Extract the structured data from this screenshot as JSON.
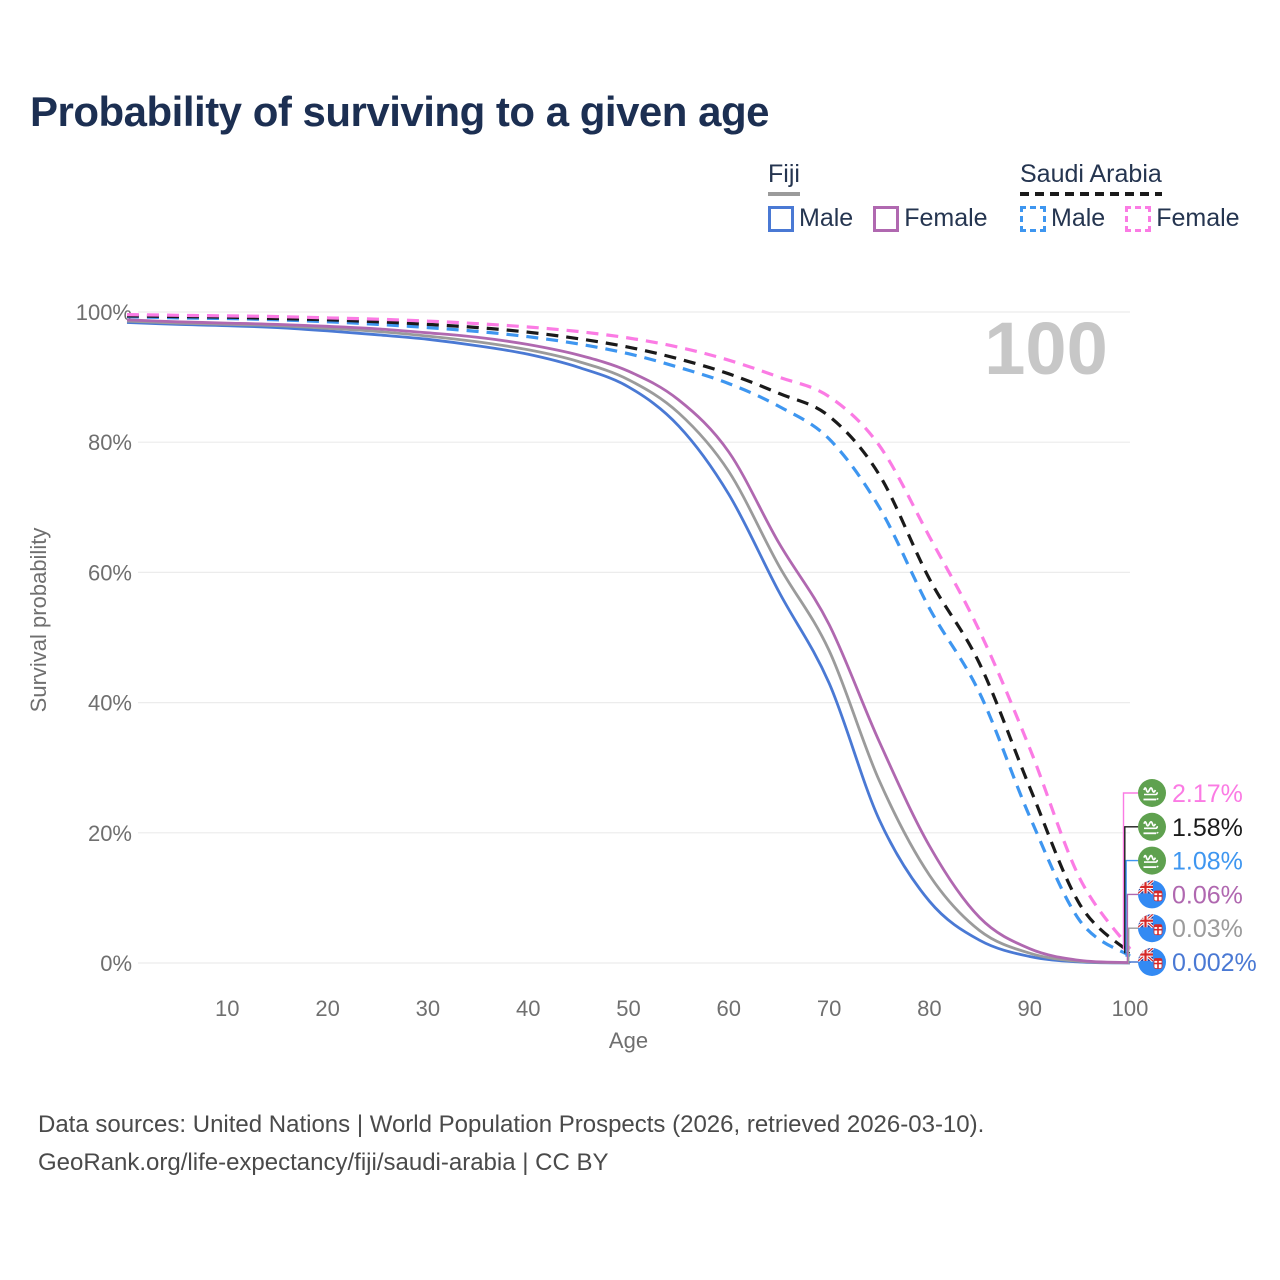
{
  "page": {
    "title": "Probability of surviving to a given age",
    "footer_line1": "Data sources: United Nations | World Population Prospects (2026, retrieved 2026-03-10).",
    "footer_line2": "GeoRank.org/life-expectancy/fiji/saudi-arabia | CC BY"
  },
  "legend": {
    "groups": [
      {
        "country": "Fiji",
        "underline_style": "solid",
        "underline_color": "#9b9b9b",
        "items": [
          {
            "label": "Male",
            "color": "#4a79d4",
            "dashed": false
          },
          {
            "label": "Female",
            "color": "#b068b0",
            "dashed": false
          }
        ]
      },
      {
        "country": "Saudi Arabia",
        "underline_style": "dashed",
        "underline_color": "#1a1a1a",
        "items": [
          {
            "label": "Male",
            "color": "#3e96f0",
            "dashed": true
          },
          {
            "label": "Female",
            "color": "#fb7be4",
            "dashed": true
          }
        ]
      }
    ]
  },
  "chart_data": {
    "type": "line",
    "title": "Probability of surviving to a given age",
    "xlabel": "Age",
    "ylabel": "Survival probability",
    "xlim": [
      0,
      100
    ],
    "ylim": [
      0,
      100
    ],
    "x_ticks": [
      10,
      20,
      30,
      40,
      50,
      60,
      70,
      80,
      90,
      100
    ],
    "y_ticks": [
      0,
      20,
      40,
      60,
      80,
      100
    ],
    "y_tick_suffix": "%",
    "grid": true,
    "legend_position": "top-right",
    "hover_age_label": "100",
    "ages": [
      0,
      5,
      10,
      15,
      20,
      25,
      30,
      35,
      40,
      45,
      50,
      55,
      60,
      65,
      70,
      75,
      80,
      85,
      90,
      95,
      100
    ],
    "series": [
      {
        "id": "fiji_male",
        "name": "Fiji Male",
        "country": "fiji",
        "style": "solid",
        "color": "#4a79d4",
        "values": [
          98.4,
          98.1,
          97.9,
          97.6,
          97.1,
          96.5,
          95.8,
          94.8,
          93.5,
          91.5,
          88.5,
          82.5,
          72,
          57,
          43,
          22,
          9.5,
          3.5,
          1.0,
          0.15,
          0.002
        ]
      },
      {
        "id": "fiji_all",
        "name": "Fiji",
        "country": "fiji",
        "style": "solid",
        "color": "#9b9b9b",
        "values": [
          98.6,
          98.3,
          98.1,
          97.9,
          97.5,
          97.0,
          96.3,
          95.4,
          94.2,
          92.4,
          89.6,
          84.5,
          75.5,
          61,
          48,
          28,
          13.5,
          5.0,
          1.5,
          0.25,
          0.03
        ]
      },
      {
        "id": "fiji_female",
        "name": "Fiji Female",
        "country": "fiji",
        "style": "solid",
        "color": "#b068b0",
        "values": [
          98.8,
          98.5,
          98.3,
          98.1,
          97.8,
          97.4,
          96.8,
          96.1,
          95.0,
          93.4,
          90.9,
          86.5,
          78.5,
          64.5,
          52,
          34,
          18,
          7.0,
          2.2,
          0.4,
          0.06
        ]
      },
      {
        "id": "saudi_male",
        "name": "Saudi Arabia Male",
        "country": "saudi_arabia",
        "style": "dashed",
        "color": "#3e96f0",
        "values": [
          99.3,
          99.1,
          99.0,
          98.8,
          98.5,
          98.1,
          97.6,
          97.0,
          96.2,
          95.1,
          93.6,
          91.5,
          89.0,
          85.5,
          80.5,
          70,
          54.5,
          41.5,
          22.5,
          6.5,
          1.08
        ]
      },
      {
        "id": "saudi_all",
        "name": "Saudi Arabia",
        "country": "saudi_arabia",
        "style": "dashed",
        "color": "#1a1a1a",
        "values": [
          99.4,
          99.3,
          99.2,
          99.0,
          98.8,
          98.5,
          98.1,
          97.6,
          96.9,
          95.9,
          94.6,
          92.8,
          90.5,
          87.5,
          84,
          75,
          59,
          46,
          27,
          9,
          1.58
        ]
      },
      {
        "id": "saudi_female",
        "name": "Saudi Arabia Female",
        "country": "saudi_arabia",
        "style": "dashed",
        "color": "#fb7be4",
        "values": [
          99.6,
          99.5,
          99.4,
          99.3,
          99.1,
          98.9,
          98.6,
          98.2,
          97.7,
          97.0,
          96.0,
          94.6,
          92.6,
          90.0,
          87,
          79.5,
          65.5,
          51,
          33,
          13,
          2.17
        ]
      }
    ],
    "end_labels": [
      {
        "series": "saudi_female",
        "value": "2.17%"
      },
      {
        "series": "saudi_all",
        "value": "1.58%"
      },
      {
        "series": "saudi_male",
        "value": "1.08%"
      },
      {
        "series": "fiji_female",
        "value": "0.06%"
      },
      {
        "series": "fiji_all",
        "value": "0.03%"
      },
      {
        "series": "fiji_male",
        "value": "0.002%"
      }
    ],
    "flag_colors": {
      "saudi_green": "#5fa14f",
      "fiji_blue": "#338af3"
    }
  }
}
